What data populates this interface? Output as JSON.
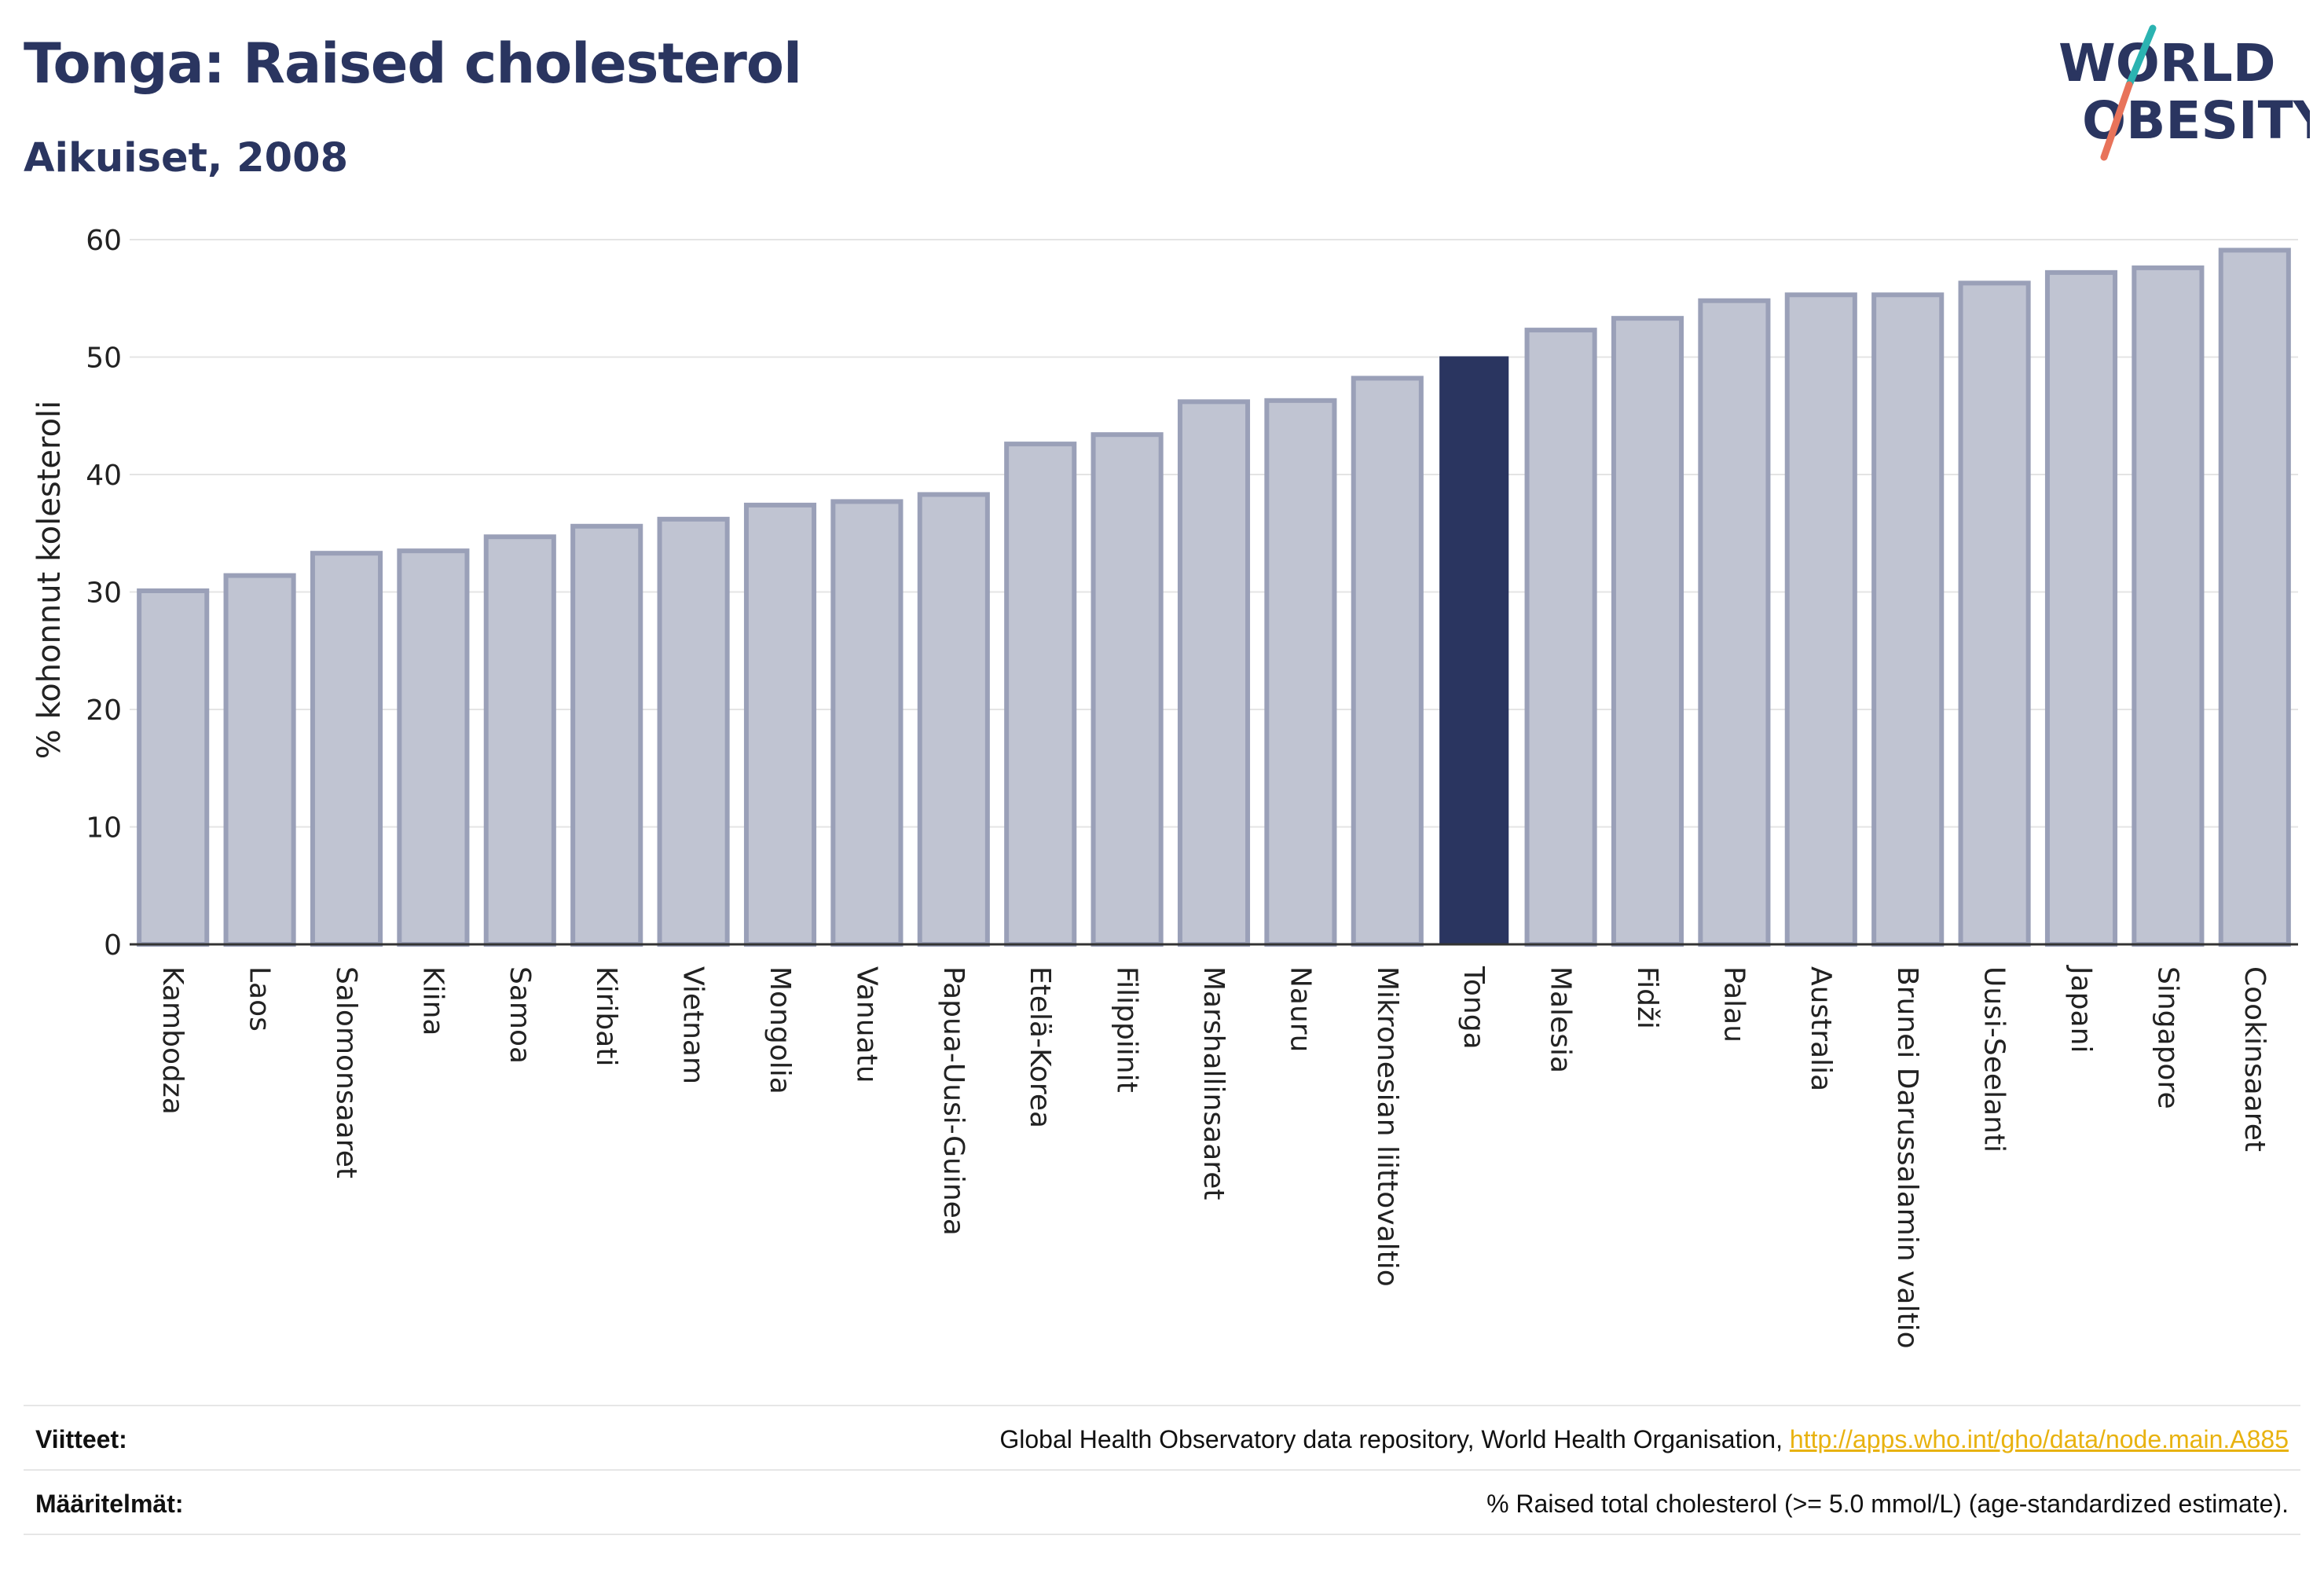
{
  "title": "Tonga: Raised cholesterol",
  "subtitle": "Aikuiset, 2008",
  "logo": {
    "line1": "WORLD",
    "line2": "OBESITY"
  },
  "colors": {
    "highlight": "#2a3560",
    "bar_fill": "#c0c4d2",
    "bar_stroke": "#9aa0b8",
    "grid": "#e4e4e4",
    "logo_teal": "#2bb3b1",
    "logo_coral": "#e8735a",
    "link": "#e8b20f"
  },
  "chart_data": {
    "type": "bar",
    "ylabel": "% kohonnut kolesteroli",
    "ylim": [
      0,
      60
    ],
    "yticks": [
      0,
      10,
      20,
      30,
      40,
      50,
      60
    ],
    "grid": true,
    "highlight": "Tonga",
    "categories": [
      "Kambodza",
      "Laos",
      "Salomonsaaret",
      "Kiina",
      "Samoa",
      "Kiribati",
      "Vietnam",
      "Mongolia",
      "Vanuatu",
      "Papua-Uusi-Guinea",
      "Etelä-Korea",
      "Filippiinit",
      "Marshallinsaaret",
      "Nauru",
      "Mikronesian liittovaltio",
      "Tonga",
      "Malesia",
      "Fidži",
      "Palau",
      "Australia",
      "Brunei Darussalamin valtio",
      "Uusi-Seelanti",
      "Japani",
      "Singapore",
      "Cookinsaaret"
    ],
    "values": [
      30.1,
      31.4,
      33.3,
      33.5,
      34.7,
      35.6,
      36.2,
      37.4,
      37.7,
      38.3,
      42.6,
      43.4,
      46.2,
      46.3,
      48.2,
      50.0,
      52.3,
      53.3,
      54.8,
      55.3,
      55.3,
      56.3,
      57.2,
      57.6,
      59.1
    ]
  },
  "footer": {
    "sources_label": "Viitteet:",
    "sources_text": "Global Health Observatory data repository, World Health Organisation, ",
    "sources_link": "http://apps.who.int/gho/data/node.main.A885",
    "definitions_label": "Määritelmät:",
    "definitions_text": "% Raised total cholesterol (>= 5.0 mmol/L) (age-standardized estimate)."
  }
}
